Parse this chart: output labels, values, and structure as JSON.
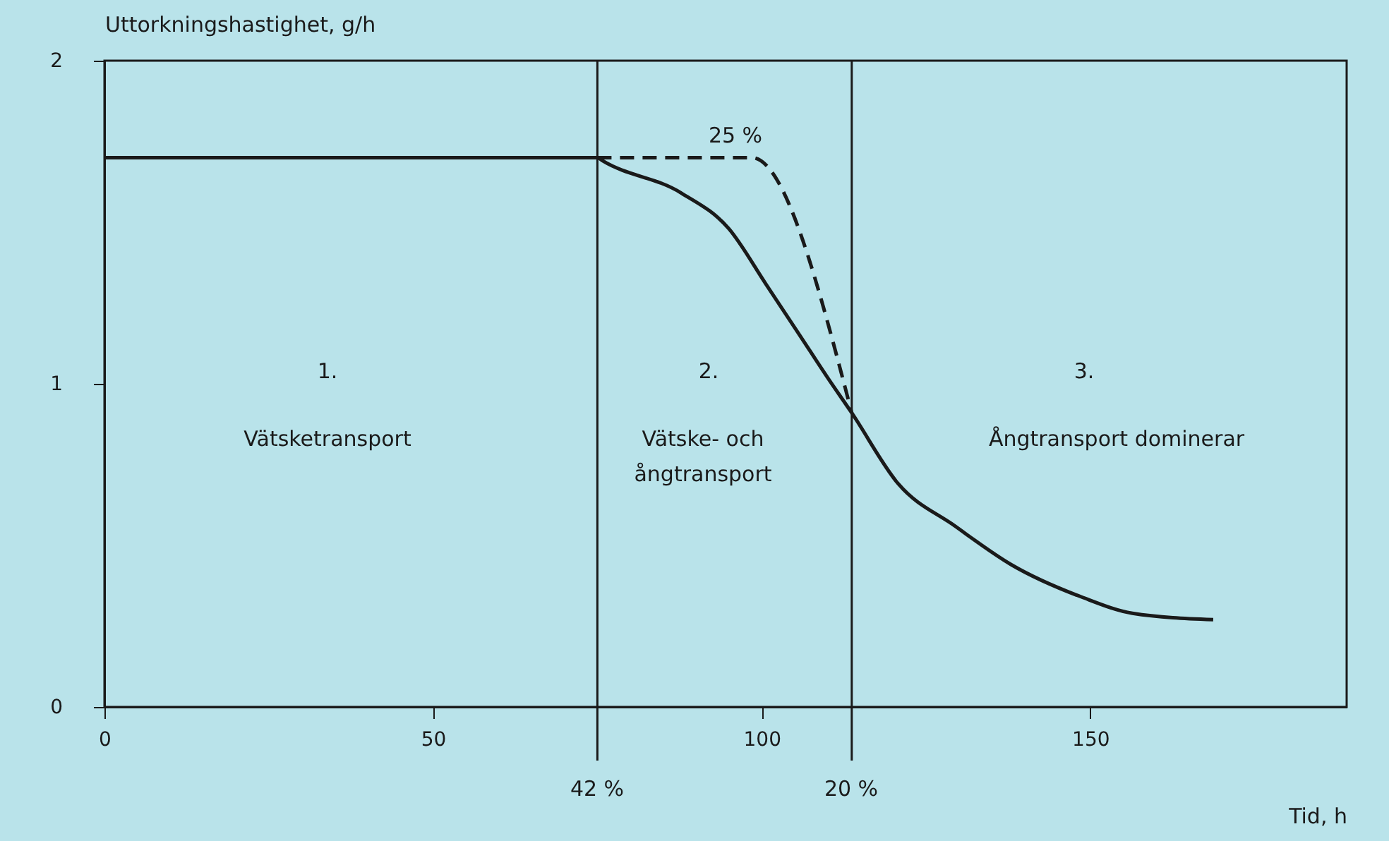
{
  "chart_data": {
    "type": "line",
    "xlabel": "Tid, h",
    "ylabel": "Uttorkningshastighet, g/h",
    "xlim": [
      0,
      189
    ],
    "ylim": [
      0,
      2
    ],
    "xticks": [
      0,
      50,
      100,
      150
    ],
    "yticks": [
      0,
      1,
      2
    ],
    "grid": false,
    "series": [
      {
        "color": "#1a1a1a",
        "line_style": "solid",
        "x": [
          0,
          75,
          75.8,
          87.8,
          95,
          100.6,
          105.8,
          110,
          113.7,
          120.8,
          129.4,
          138,
          148.7,
          156.4,
          168.7
        ],
        "values": [
          1.7,
          1.7,
          1.69,
          1.59,
          1.48,
          1.31,
          1.15,
          1.02,
          0.91,
          0.69,
          0.56,
          0.44,
          0.34,
          0.29,
          0.27
        ]
      },
      {
        "color": "#1a1a1a",
        "line_style": "dashed",
        "x": [
          75,
          98.5,
          113.7
        ],
        "values": [
          1.7,
          1.7,
          0.91
        ]
      }
    ],
    "ref_lines": [
      {
        "axis": "x",
        "value": 75,
        "color": "#1a1a1a"
      },
      {
        "axis": "x",
        "value": 113.7,
        "color": "#1a1a1a"
      }
    ],
    "annotations": [
      "42 %",
      "20 %",
      "25 %",
      "1.",
      "Vätsketransport",
      "2.",
      "Vätske- och",
      "ångtransport",
      "3.",
      "Ångtransport dominerar"
    ]
  }
}
